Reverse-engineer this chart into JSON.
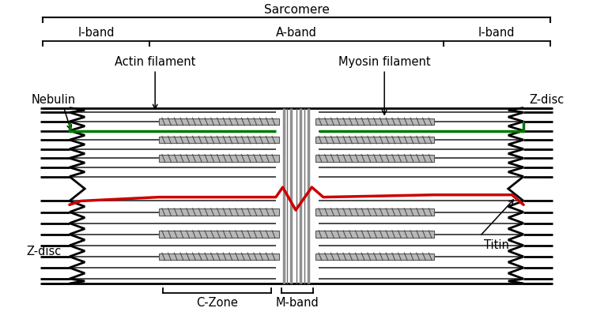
{
  "labels": {
    "sarcomere": "Sarcomere",
    "i_band_left": "I-band",
    "i_band_right": "I-band",
    "a_band": "A-band",
    "actin": "Actin filament",
    "myosin": "Myosin filament",
    "nebulin": "Nebulin",
    "z_disc_left": "Z-disc",
    "z_disc_right": "Z-disc",
    "c_zone": "C-Zone",
    "m_band": "M-band",
    "titin": "Titin"
  },
  "colors": {
    "black": "#000000",
    "myosin_fill": "#b8b8b8",
    "myosin_edge": "#555555",
    "actin_color": "#1a1a1a",
    "green": "#007700",
    "red": "#cc0000",
    "white": "#ffffff",
    "mband_gray": "#909090"
  },
  "fig_width": 7.5,
  "fig_height": 4.09,
  "dpi": 100
}
